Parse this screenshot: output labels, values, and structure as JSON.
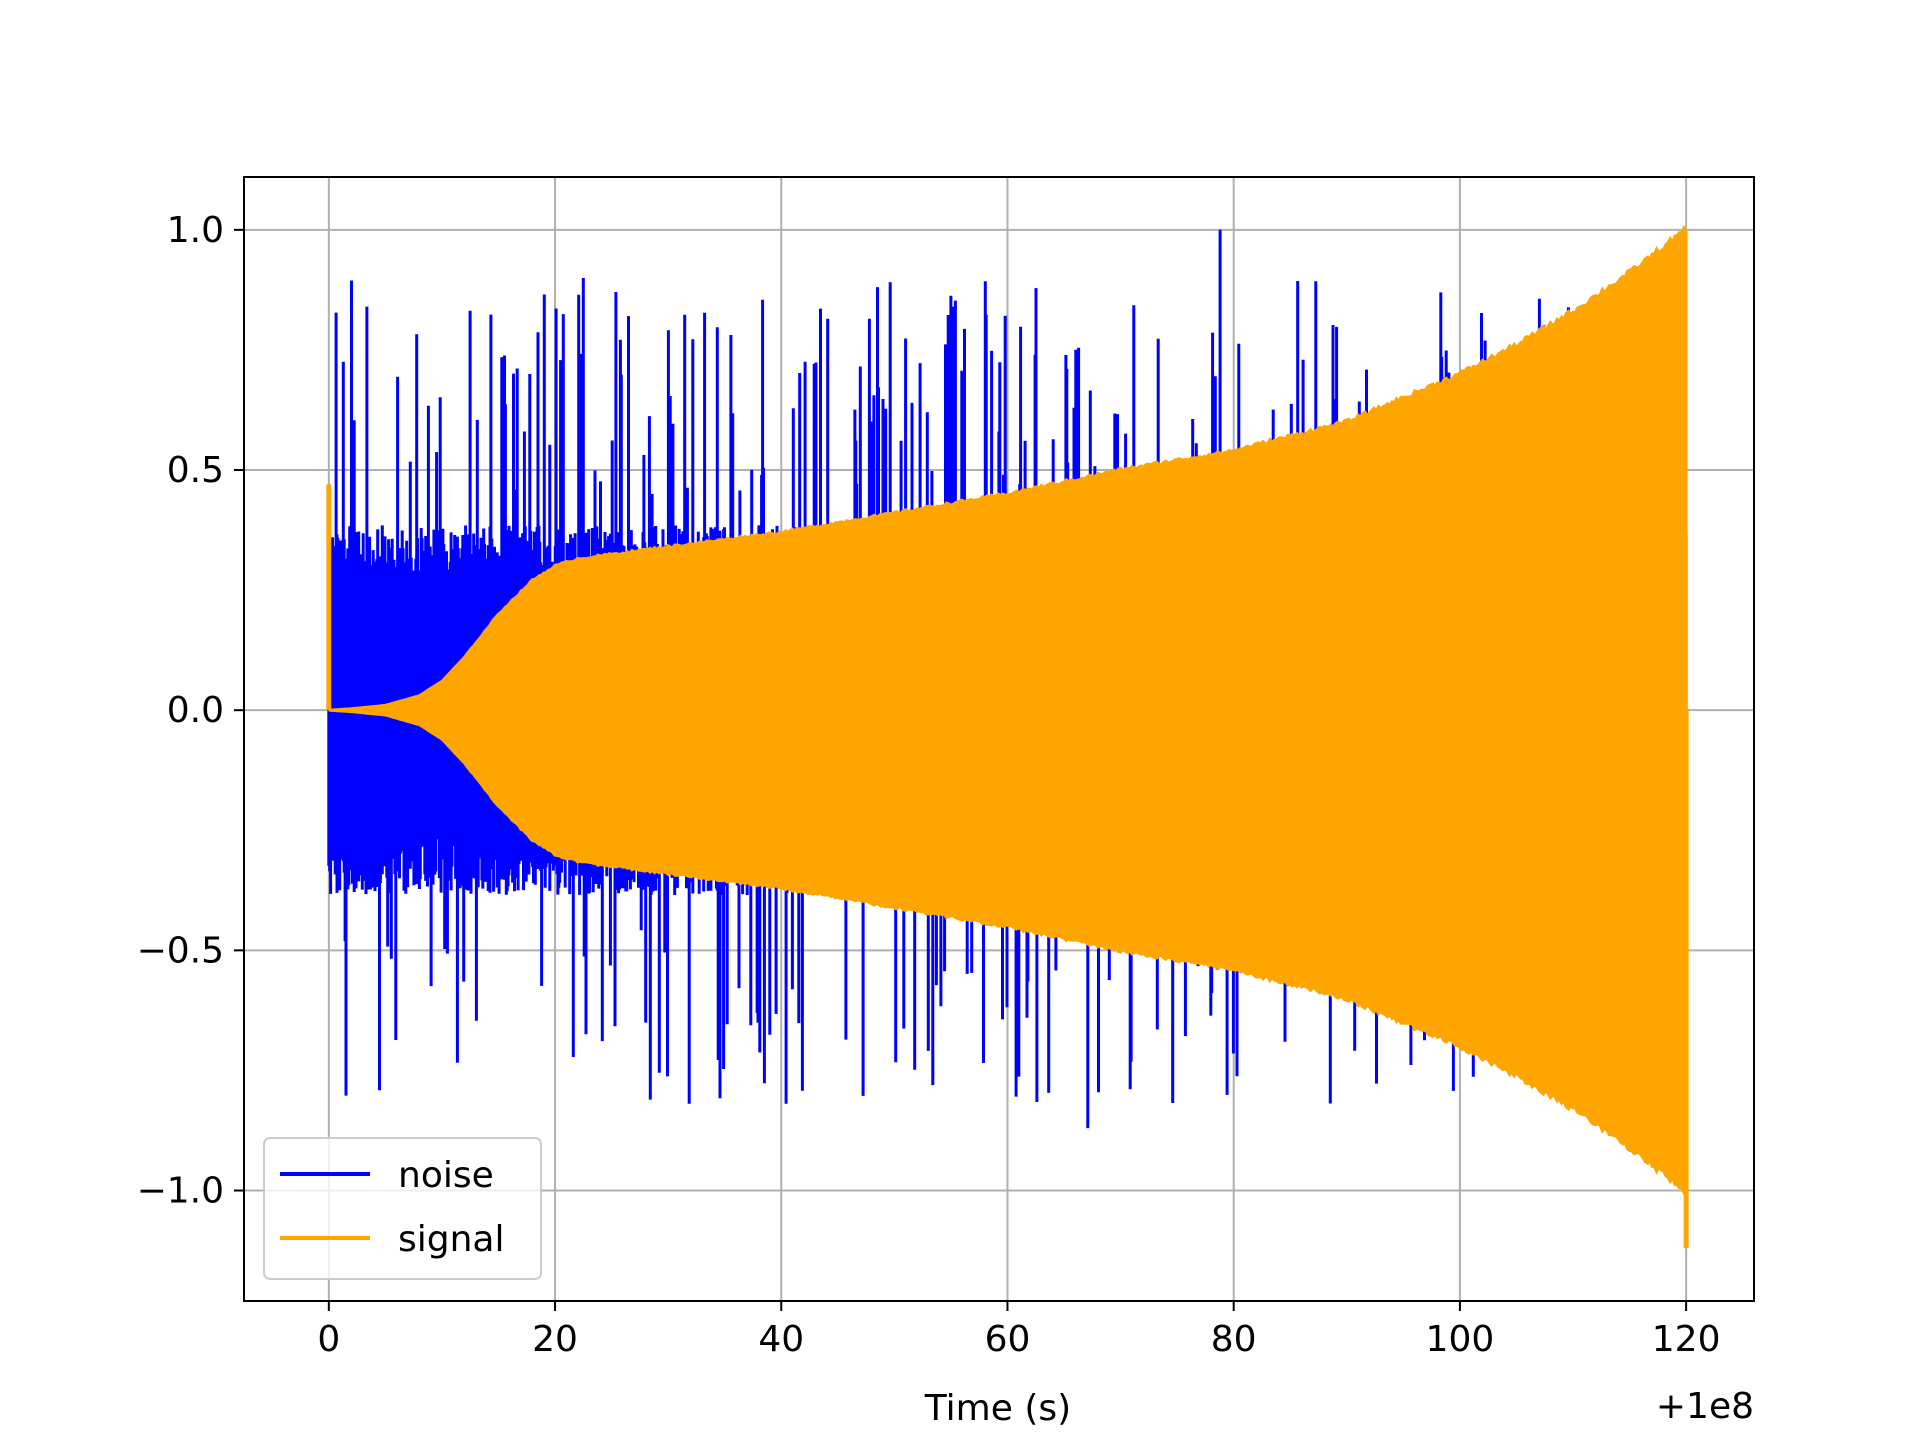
{
  "chart_data": {
    "type": "line",
    "title": "",
    "xlabel": "Time (s)",
    "ylabel": "",
    "x_offset_label": "+1e8",
    "xlim": [
      -7.5,
      126
    ],
    "ylim": [
      -1.23,
      1.11
    ],
    "xticks": [
      0,
      20,
      40,
      60,
      80,
      100,
      120
    ],
    "xtick_labels": [
      "0",
      "20",
      "40",
      "60",
      "80",
      "100",
      "120"
    ],
    "yticks": [
      1.0,
      0.5,
      0.0,
      -0.5,
      -1.0
    ],
    "ytick_labels": [
      "1.0",
      "0.5",
      "0.0",
      "−0.5",
      "−1.0"
    ],
    "grid": true,
    "legend_position": "lower-left",
    "series": [
      {
        "name": "noise",
        "color": "#0000ff",
        "x_range": [
          0,
          120
        ],
        "description_values": {
          "typical_upper_envelope": 0.35,
          "typical_lower_envelope": -0.35,
          "max_spike": 1.0,
          "max_spike_x": 78.8,
          "min_spike": -0.87,
          "min_spike_x": 67.1
        }
      },
      {
        "name": "signal",
        "color": "#ffa500",
        "x_range": [
          0,
          120
        ],
        "envelope_x": [
          0,
          2,
          5,
          8,
          10,
          12,
          15,
          18,
          20,
          22,
          30,
          40,
          50,
          60,
          70,
          80,
          90,
          100,
          105,
          110,
          115,
          120
        ],
        "envelope_y": [
          0.0,
          0.003,
          0.01,
          0.03,
          0.06,
          0.11,
          0.2,
          0.27,
          0.3,
          0.315,
          0.34,
          0.37,
          0.41,
          0.45,
          0.5,
          0.54,
          0.6,
          0.7,
          0.76,
          0.83,
          0.91,
          1.0
        ],
        "initial_spike": 0.47,
        "final_min": -1.12
      }
    ]
  }
}
